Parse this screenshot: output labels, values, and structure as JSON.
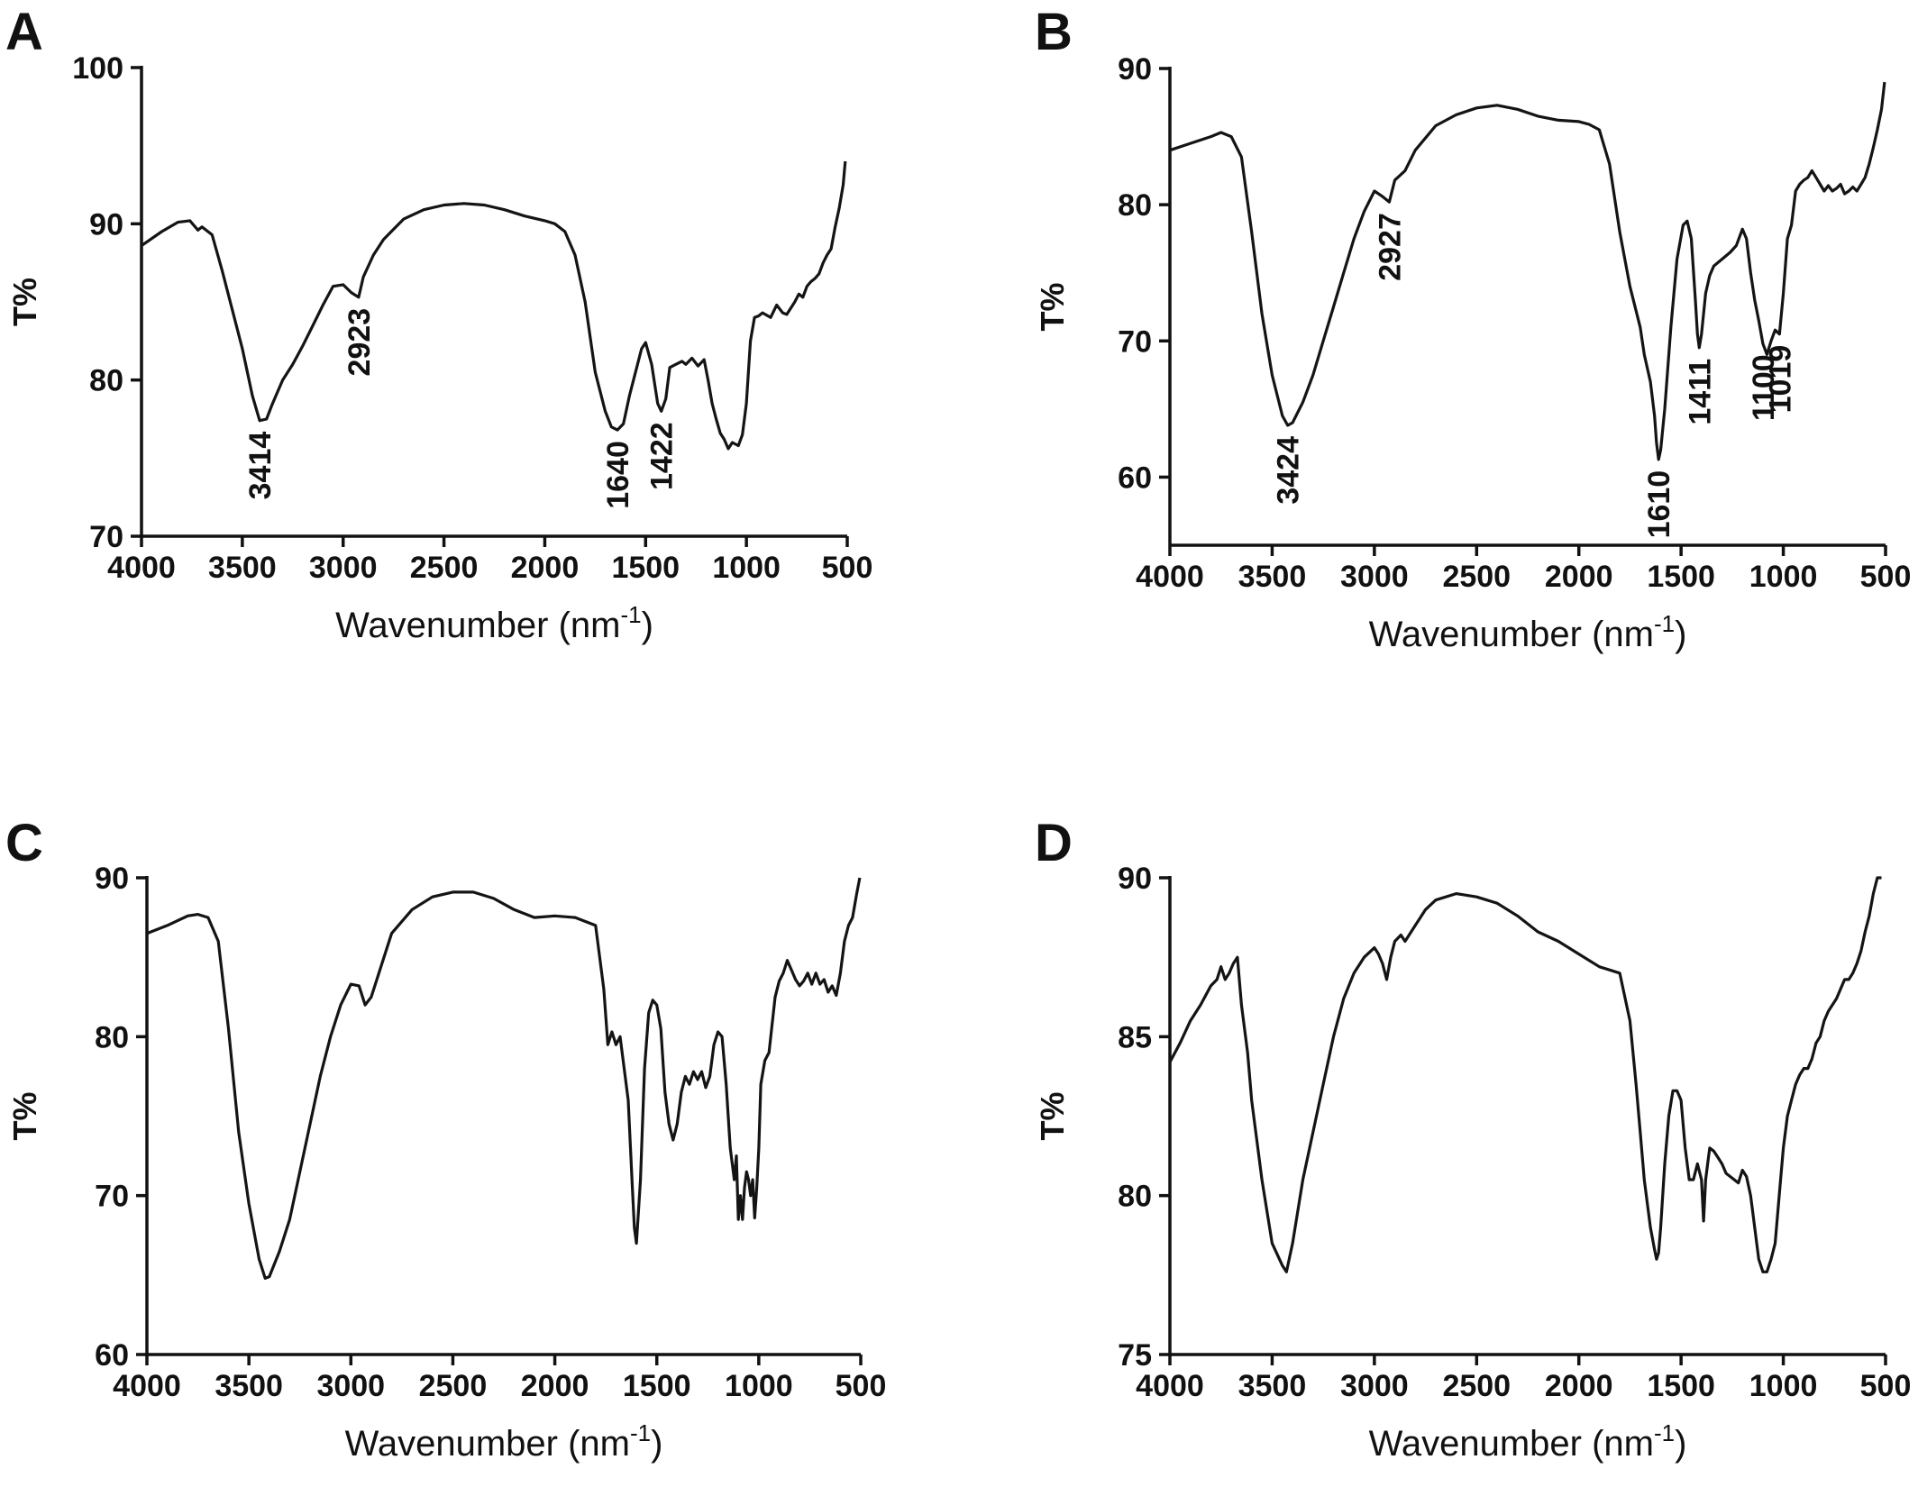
{
  "chart_data": [
    {
      "panel": "A",
      "type": "line",
      "xlabel": "Wavenumber (nm",
      "xlabel_sup": "-1",
      "xlabel_close": ")",
      "ylabel": "T%",
      "xlim": [
        4000,
        500
      ],
      "ylim": [
        70,
        100
      ],
      "xticks": [
        4000,
        3500,
        3000,
        2500,
        2000,
        1500,
        1000,
        500
      ],
      "yticks": [
        70,
        80,
        90,
        100
      ],
      "annotations": [
        "3414",
        "2923",
        "1640",
        "1422"
      ],
      "annotation_x": [
        3414,
        2923,
        1640,
        1422
      ],
      "series": [
        {
          "x": [
            4000,
            3900,
            3820,
            3760,
            3720,
            3700,
            3650,
            3600,
            3550,
            3500,
            3450,
            3414,
            3380,
            3350,
            3300,
            3250,
            3200,
            3150,
            3100,
            3050,
            3000,
            2960,
            2923,
            2900,
            2850,
            2800,
            2700,
            2600,
            2500,
            2400,
            2300,
            2200,
            2100,
            2000,
            1950,
            1900,
            1850,
            1800,
            1750,
            1700,
            1670,
            1640,
            1610,
            1580,
            1550,
            1520,
            1500,
            1470,
            1440,
            1422,
            1400,
            1380,
            1350,
            1320,
            1300,
            1270,
            1240,
            1210,
            1190,
            1170,
            1150,
            1130,
            1110,
            1090,
            1070,
            1040,
            1020,
            1000,
            980,
            960,
            940,
            920,
            880,
            850,
            820,
            800,
            760,
            740,
            720,
            700,
            680,
            660,
            640,
            620,
            600,
            580,
            560,
            540,
            520,
            510
          ],
          "y": [
            88.6,
            89.5,
            90.1,
            90.2,
            89.6,
            89.8,
            89.3,
            87.0,
            84.5,
            82.0,
            79.0,
            77.4,
            77.5,
            78.5,
            80.0,
            81.0,
            82.2,
            83.5,
            84.8,
            86.0,
            86.1,
            85.6,
            85.3,
            86.6,
            88.0,
            89.0,
            90.3,
            90.9,
            91.2,
            91.3,
            91.2,
            90.9,
            90.5,
            90.2,
            90.0,
            89.5,
            88.0,
            85.0,
            80.5,
            78.0,
            77.0,
            76.8,
            77.2,
            79.0,
            80.5,
            82.0,
            82.4,
            81.0,
            78.5,
            78.0,
            78.8,
            80.8,
            81.0,
            81.2,
            81.0,
            81.4,
            80.9,
            81.3,
            80.0,
            78.5,
            77.5,
            76.6,
            76.2,
            75.6,
            76.0,
            75.8,
            76.5,
            78.5,
            82.5,
            84.0,
            84.1,
            84.3,
            84.0,
            84.8,
            84.3,
            84.2,
            85.0,
            85.5,
            85.3,
            86.0,
            86.3,
            86.5,
            86.8,
            87.5,
            88.0,
            88.4,
            89.8,
            91.0,
            92.5,
            94.0
          ]
        }
      ]
    },
    {
      "panel": "B",
      "type": "line",
      "xlabel": "Wavenumber (nm",
      "xlabel_sup": "-1",
      "xlabel_close": ")",
      "ylabel": "T%",
      "xlim": [
        4000,
        500
      ],
      "ylim": [
        55,
        90
      ],
      "xticks": [
        4000,
        3500,
        3000,
        2500,
        2000,
        1500,
        1000,
        500
      ],
      "yticks": [
        60,
        70,
        80,
        90
      ],
      "annotations": [
        "3424",
        "2927",
        "1610",
        "1411",
        "1100",
        "1019"
      ],
      "annotation_x": [
        3424,
        2927,
        1610,
        1411,
        1100,
        1019
      ],
      "series": [
        {
          "x": [
            4000,
            3900,
            3800,
            3750,
            3700,
            3650,
            3600,
            3550,
            3500,
            3450,
            3424,
            3400,
            3350,
            3300,
            3250,
            3200,
            3150,
            3100,
            3050,
            3000,
            2960,
            2927,
            2900,
            2850,
            2800,
            2700,
            2600,
            2500,
            2400,
            2300,
            2200,
            2100,
            2000,
            1950,
            1900,
            1850,
            1800,
            1750,
            1700,
            1680,
            1650,
            1630,
            1620,
            1610,
            1600,
            1580,
            1550,
            1520,
            1490,
            1470,
            1450,
            1430,
            1420,
            1411,
            1400,
            1380,
            1360,
            1340,
            1300,
            1260,
            1230,
            1200,
            1180,
            1160,
            1140,
            1120,
            1100,
            1080,
            1060,
            1040,
            1019,
            1000,
            980,
            960,
            940,
            920,
            900,
            880,
            860,
            840,
            820,
            800,
            780,
            760,
            740,
            720,
            700,
            680,
            660,
            640,
            620,
            600,
            580,
            560,
            540,
            520,
            505
          ],
          "y": [
            84.0,
            84.5,
            85.0,
            85.3,
            85.0,
            83.5,
            78.0,
            72.0,
            67.5,
            64.5,
            63.8,
            64.0,
            65.5,
            67.5,
            70.0,
            72.5,
            75.0,
            77.5,
            79.5,
            81.0,
            80.6,
            80.2,
            81.8,
            82.5,
            84.0,
            85.8,
            86.6,
            87.1,
            87.3,
            87.0,
            86.5,
            86.2,
            86.1,
            85.9,
            85.5,
            83.0,
            78.0,
            74.0,
            71.0,
            69.0,
            67.0,
            64.5,
            62.5,
            61.3,
            62.0,
            65.0,
            71.0,
            76.0,
            78.5,
            78.8,
            77.5,
            73.0,
            70.5,
            69.5,
            70.5,
            73.5,
            74.8,
            75.5,
            76.0,
            76.5,
            77.0,
            78.2,
            77.5,
            75.0,
            73.0,
            71.5,
            69.8,
            69.0,
            70.0,
            70.8,
            70.5,
            73.5,
            77.5,
            78.5,
            81.0,
            81.5,
            81.8,
            82.0,
            82.5,
            82.0,
            81.5,
            81.0,
            81.4,
            81.0,
            81.2,
            81.5,
            80.8,
            81.0,
            81.3,
            81.0,
            81.5,
            82.0,
            83.0,
            84.2,
            85.5,
            87.0,
            89.0
          ]
        }
      ]
    },
    {
      "panel": "C",
      "type": "line",
      "xlabel": "Wavenumber (nm",
      "xlabel_sup": "-1",
      "xlabel_close": ")",
      "ylabel": "T%",
      "xlim": [
        4000,
        500
      ],
      "ylim": [
        60,
        90
      ],
      "xticks": [
        4000,
        3500,
        3000,
        2500,
        2000,
        1500,
        1000,
        500
      ],
      "yticks": [
        60,
        70,
        80,
        90
      ],
      "annotations": [],
      "series": [
        {
          "x": [
            4000,
            3900,
            3800,
            3750,
            3700,
            3650,
            3600,
            3550,
            3500,
            3450,
            3420,
            3400,
            3350,
            3300,
            3250,
            3200,
            3150,
            3100,
            3050,
            3000,
            2960,
            2930,
            2900,
            2850,
            2800,
            2700,
            2600,
            2500,
            2400,
            2300,
            2200,
            2100,
            2000,
            1900,
            1800,
            1760,
            1740,
            1720,
            1700,
            1680,
            1660,
            1640,
            1620,
            1610,
            1600,
            1580,
            1560,
            1540,
            1520,
            1500,
            1480,
            1460,
            1440,
            1420,
            1400,
            1380,
            1360,
            1340,
            1320,
            1300,
            1280,
            1260,
            1240,
            1220,
            1200,
            1180,
            1160,
            1140,
            1120,
            1110,
            1100,
            1090,
            1080,
            1070,
            1060,
            1050,
            1040,
            1030,
            1020,
            1010,
            1000,
            990,
            970,
            950,
            920,
            900,
            880,
            860,
            840,
            820,
            800,
            780,
            760,
            740,
            720,
            700,
            680,
            660,
            640,
            620,
            600,
            580,
            560,
            540,
            520,
            505
          ],
          "y": [
            86.5,
            87.0,
            87.6,
            87.7,
            87.5,
            86.0,
            80.5,
            74.0,
            69.5,
            66.0,
            64.8,
            64.9,
            66.5,
            68.5,
            71.5,
            74.5,
            77.5,
            80.0,
            82.0,
            83.3,
            83.2,
            82.0,
            82.5,
            84.5,
            86.5,
            88.0,
            88.8,
            89.1,
            89.1,
            88.7,
            88.0,
            87.5,
            87.6,
            87.5,
            87.0,
            83.0,
            79.5,
            80.3,
            79.5,
            80.0,
            78.0,
            76.0,
            70.5,
            68.0,
            67.0,
            71.0,
            78.0,
            81.5,
            82.3,
            82.0,
            80.5,
            76.5,
            74.5,
            73.5,
            74.5,
            76.5,
            77.5,
            77.0,
            77.8,
            77.3,
            77.8,
            76.8,
            77.5,
            79.5,
            80.3,
            80.0,
            77.0,
            73.0,
            71.0,
            72.5,
            68.5,
            70.0,
            68.5,
            70.5,
            71.5,
            71.0,
            70.0,
            71.0,
            68.6,
            70.5,
            73.0,
            77.0,
            78.5,
            79.0,
            82.5,
            83.5,
            84.0,
            84.8,
            84.2,
            83.6,
            83.2,
            83.5,
            84.0,
            83.3,
            84.0,
            83.3,
            83.6,
            82.8,
            83.2,
            82.6,
            84.0,
            86.0,
            87.0,
            87.5,
            89.0,
            90.0
          ]
        }
      ]
    },
    {
      "panel": "D",
      "type": "line",
      "xlabel": "Wavenumber (nm",
      "xlabel_sup": "-1",
      "xlabel_close": ")",
      "ylabel": "T%",
      "xlim": [
        4000,
        500
      ],
      "ylim": [
        75,
        90
      ],
      "xticks": [
        4000,
        3500,
        3000,
        2500,
        2000,
        1500,
        1000,
        500
      ],
      "yticks": [
        75,
        80,
        85,
        90
      ],
      "annotations": [],
      "series": [
        {
          "x": [
            4000,
            3950,
            3900,
            3850,
            3800,
            3770,
            3750,
            3730,
            3710,
            3690,
            3670,
            3650,
            3620,
            3600,
            3550,
            3500,
            3450,
            3430,
            3400,
            3350,
            3300,
            3250,
            3200,
            3150,
            3100,
            3050,
            3000,
            2980,
            2960,
            2940,
            2920,
            2900,
            2870,
            2850,
            2800,
            2750,
            2700,
            2600,
            2500,
            2400,
            2300,
            2200,
            2100,
            2000,
            1900,
            1800,
            1750,
            1720,
            1700,
            1680,
            1650,
            1630,
            1620,
            1610,
            1600,
            1580,
            1560,
            1540,
            1520,
            1500,
            1480,
            1460,
            1440,
            1420,
            1400,
            1390,
            1380,
            1370,
            1360,
            1340,
            1320,
            1300,
            1280,
            1260,
            1240,
            1220,
            1200,
            1180,
            1160,
            1140,
            1120,
            1100,
            1080,
            1060,
            1040,
            1020,
            1000,
            980,
            960,
            940,
            920,
            900,
            880,
            860,
            840,
            820,
            800,
            780,
            760,
            740,
            720,
            700,
            680,
            660,
            640,
            620,
            600,
            580,
            560,
            540,
            520
          ],
          "y": [
            84.2,
            84.8,
            85.5,
            86.0,
            86.6,
            86.8,
            87.2,
            86.8,
            87.0,
            87.3,
            87.5,
            86.0,
            84.5,
            83.0,
            80.5,
            78.5,
            77.8,
            77.6,
            78.5,
            80.5,
            82.0,
            83.5,
            85.0,
            86.2,
            87.0,
            87.5,
            87.8,
            87.6,
            87.3,
            86.8,
            87.5,
            88.0,
            88.2,
            88.0,
            88.5,
            89.0,
            89.3,
            89.5,
            89.4,
            89.2,
            88.8,
            88.3,
            88.0,
            87.6,
            87.2,
            87.0,
            85.5,
            83.5,
            82.0,
            80.5,
            79.0,
            78.3,
            78.0,
            78.2,
            79.0,
            81.0,
            82.5,
            83.3,
            83.3,
            83.0,
            81.5,
            80.5,
            80.5,
            81.0,
            80.5,
            79.2,
            80.5,
            81.0,
            81.5,
            81.4,
            81.2,
            81.0,
            80.7,
            80.6,
            80.5,
            80.4,
            80.8,
            80.6,
            80.0,
            79.0,
            78.0,
            77.6,
            77.6,
            78.0,
            78.5,
            80.0,
            81.5,
            82.5,
            83.0,
            83.5,
            83.8,
            84.0,
            84.0,
            84.3,
            84.8,
            85.0,
            85.5,
            85.8,
            86.0,
            86.2,
            86.5,
            86.8,
            86.8,
            87.0,
            87.3,
            87.7,
            88.3,
            88.8,
            89.5,
            90.0,
            90.0
          ]
        }
      ]
    }
  ]
}
